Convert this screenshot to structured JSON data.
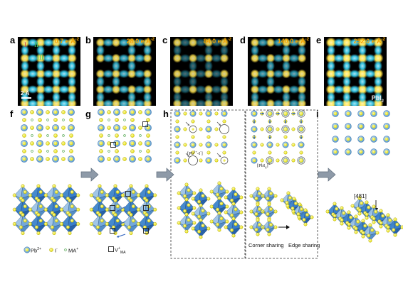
{
  "panels": {
    "a": {
      "label": "a",
      "dose_value": "0.7 e Å",
      "dose_exp": "-2"
    },
    "b": {
      "label": "b",
      "dose_value": "28.0 e Å",
      "dose_exp": "-2"
    },
    "c": {
      "label": "c",
      "dose_value": "84.0 e Å",
      "dose_exp": "-2"
    },
    "d": {
      "label": "d",
      "dose_value": "140.0 e Å",
      "dose_exp": "-2"
    },
    "e": {
      "label": "e",
      "dose_value": "252.0 e Å",
      "dose_exp": "-2"
    },
    "f": {
      "label": "f"
    },
    "g": {
      "label": "g"
    },
    "h": {
      "label": "h"
    },
    "i": {
      "label": "i"
    }
  },
  "panel_a": {
    "roman_I": "I",
    "roman_II": "II",
    "roman_III": "III",
    "scale_bar": "2 Å"
  },
  "panel_e": {
    "phase_main": "PbI",
    "phase_sub": "2"
  },
  "panel_h": {
    "left_chip_main": "[Pb",
    "left_chip_sup": "2+",
    "left_chip_tail": "-I",
    "left_chip_tail_sup": "-",
    "left_chip_end": "]",
    "right_chip_main": "[PbI",
    "right_chip_sub": "6",
    "right_chip_end": "]",
    "right_chip_sup": "4-",
    "corner_sharing": "Corner sharing",
    "edge_sharing": "Edge sharing"
  },
  "panel_i": {
    "direction": "[481]"
  },
  "legend": {
    "pb_main": "Pb",
    "pb_sup": "2+",
    "i_main": "I",
    "i_sup": "-",
    "ma_main": "MA",
    "ma_sup": "+",
    "vacancy_main": "V",
    "vacancy_sup": "+",
    "vacancy_sub": "MA"
  },
  "colors": {
    "tem_background": "#000000",
    "tem_cyan": "#35c8e8",
    "tem_yellow": "#ffe24a",
    "dose_text": "#f5a400",
    "pb_atom": "#6aa6d8",
    "i_atom": "#e6e020",
    "octahedron_light": "#9cc4e6",
    "octahedron_dark": "#2f78c8",
    "arrow_grey": "#8e9aa8"
  }
}
